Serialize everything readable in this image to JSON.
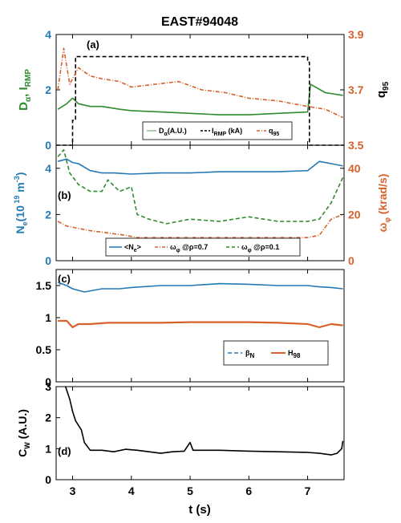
{
  "title": "EAST#94048",
  "xlabel": "t (s)",
  "x_ticks": [
    "3",
    "4",
    "5",
    "6",
    "7"
  ],
  "xlim": [
    2.72,
    7.62
  ],
  "colors": {
    "blue": "#2479b4",
    "orange": "#d7612a",
    "green": "#2e8b2e",
    "black": "#000000",
    "legend_green": "#8fbc8f"
  },
  "chart_data": [
    {
      "type": "line",
      "panel_label": "(a)",
      "ylabel_left": "D_α, I_RMP",
      "ylabel_right": "q_95",
      "ylim_left": [
        0,
        4
      ],
      "ylim_right": [
        3.5,
        3.9
      ],
      "yticks_left": [
        "0",
        "2",
        "4"
      ],
      "yticks_right": [
        "3.5",
        "3.7",
        "3.9"
      ],
      "legend": {
        "position": "bottom-right",
        "entries": [
          "D_α(A.U.)",
          "I_RMP (kA)",
          "q_95"
        ]
      },
      "series": [
        {
          "name": "D_α(A.U.)",
          "axis": "left",
          "color": "green",
          "style": "solid",
          "x": [
            2.75,
            2.9,
            3.0,
            3.1,
            3.3,
            3.5,
            3.8,
            4.0,
            4.5,
            5.0,
            5.5,
            6.0,
            6.5,
            7.0,
            7.05,
            7.3,
            7.6
          ],
          "y": [
            1.3,
            1.5,
            1.7,
            1.5,
            1.4,
            1.4,
            1.3,
            1.25,
            1.2,
            1.15,
            1.1,
            1.1,
            1.15,
            1.2,
            2.2,
            1.9,
            1.8
          ]
        },
        {
          "name": "I_RMP (kA)",
          "axis": "left",
          "color": "black",
          "style": "dashed",
          "x": [
            2.72,
            3.0,
            3.0,
            3.05,
            3.05,
            7.0,
            7.0,
            7.03,
            7.03,
            7.62
          ],
          "y": [
            0.0,
            0.0,
            0.9,
            0.9,
            3.2,
            3.2,
            3.0,
            3.0,
            0.0,
            0.0
          ]
        },
        {
          "name": "q_95",
          "axis": "right",
          "color": "orange",
          "style": "dash-dot",
          "x": [
            2.75,
            2.85,
            2.95,
            3.1,
            3.3,
            3.5,
            3.8,
            4.0,
            4.4,
            4.8,
            5.2,
            5.6,
            6.0,
            6.5,
            7.0,
            7.3,
            7.6
          ],
          "y": [
            3.7,
            3.85,
            3.72,
            3.78,
            3.75,
            3.74,
            3.73,
            3.71,
            3.72,
            3.73,
            3.7,
            3.69,
            3.67,
            3.66,
            3.64,
            3.63,
            3.6
          ]
        }
      ]
    },
    {
      "type": "line",
      "panel_label": "(b)",
      "ylabel_left": "N_e (10^19 m^-3)",
      "ylabel_right": "ω_φ (krad/s)",
      "ylim_left": [
        0,
        5
      ],
      "ylim_right": [
        0,
        50
      ],
      "yticks_left": [
        "0",
        "2",
        "4"
      ],
      "yticks_right": [
        "0",
        "20",
        "40"
      ],
      "legend": {
        "position": "bottom",
        "entries": [
          "<N_e>",
          "ω_φ @ρ=0.7",
          "ω_φ @ρ=0.1"
        ]
      },
      "series": [
        {
          "name": "<N_e>",
          "axis": "left",
          "color": "blue",
          "style": "solid",
          "x": [
            2.75,
            2.9,
            3.0,
            3.1,
            3.3,
            3.5,
            3.7,
            4.0,
            4.5,
            5.0,
            5.5,
            6.0,
            6.5,
            7.0,
            7.2,
            7.4,
            7.6
          ],
          "y": [
            4.3,
            4.4,
            4.25,
            4.2,
            3.9,
            3.8,
            3.8,
            3.75,
            3.8,
            3.8,
            3.85,
            3.85,
            3.85,
            3.9,
            4.3,
            4.2,
            4.1
          ]
        },
        {
          "name": "ω_φ @ρ=0.7",
          "axis": "right",
          "color": "orange",
          "style": "dash-dot",
          "x": [
            2.75,
            2.9,
            3.1,
            3.3,
            3.6,
            3.9,
            4.1,
            4.5,
            5.0,
            5.5,
            6.0,
            6.5,
            7.0,
            7.2,
            7.4,
            7.6
          ],
          "y": [
            17,
            15,
            14,
            13,
            12,
            11,
            10,
            10,
            10,
            10,
            10,
            10,
            10,
            11,
            18,
            20
          ]
        },
        {
          "name": "ω_φ @ρ=0.1",
          "axis": "right",
          "color": "green",
          "style": "dashed",
          "x": [
            2.75,
            2.85,
            2.95,
            3.1,
            3.3,
            3.5,
            3.6,
            3.8,
            4.0,
            4.1,
            4.3,
            4.6,
            5.0,
            5.5,
            6.0,
            6.5,
            7.0,
            7.2,
            7.4,
            7.6
          ],
          "y": [
            45,
            48,
            38,
            33,
            30,
            30,
            35,
            30,
            32,
            20,
            18,
            16,
            18,
            17,
            19,
            17,
            17,
            18,
            25,
            36
          ]
        }
      ]
    },
    {
      "type": "line",
      "panel_label": "(c)",
      "ylim": [
        0,
        1.75
      ],
      "yticks": [
        "0",
        "0.5",
        "1",
        "1.5"
      ],
      "legend": {
        "position": "bottom-right",
        "entries": [
          "β_N",
          "H_98"
        ]
      },
      "series": [
        {
          "name": "β_N",
          "color": "blue",
          "style": "solid",
          "x": [
            2.75,
            2.9,
            3.0,
            3.2,
            3.5,
            3.8,
            4.0,
            4.5,
            5.0,
            5.5,
            6.0,
            6.5,
            7.0,
            7.2,
            7.4,
            7.6
          ],
          "y": [
            1.55,
            1.5,
            1.45,
            1.4,
            1.45,
            1.45,
            1.47,
            1.5,
            1.5,
            1.53,
            1.52,
            1.5,
            1.5,
            1.48,
            1.47,
            1.45
          ]
        },
        {
          "name": "H_98",
          "color": "orange",
          "style": "solid",
          "x": [
            2.75,
            2.9,
            3.0,
            3.1,
            3.3,
            3.6,
            4.0,
            4.5,
            5.0,
            5.5,
            6.0,
            6.5,
            7.0,
            7.2,
            7.4,
            7.6
          ],
          "y": [
            0.95,
            0.95,
            0.85,
            0.9,
            0.9,
            0.92,
            0.92,
            0.92,
            0.93,
            0.93,
            0.93,
            0.92,
            0.9,
            0.85,
            0.9,
            0.88
          ]
        }
      ]
    },
    {
      "type": "line",
      "panel_label": "(d)",
      "ylabel": "C_w (A.U.)",
      "ylim": [
        0,
        3
      ],
      "yticks": [
        "0",
        "1",
        "2",
        "3"
      ],
      "series": [
        {
          "name": "C_w",
          "color": "black",
          "style": "solid",
          "x": [
            2.88,
            2.95,
            3.0,
            3.05,
            3.15,
            3.2,
            3.3,
            3.5,
            3.7,
            3.9,
            4.1,
            4.3,
            4.5,
            4.7,
            4.9,
            5.0,
            5.05,
            5.2,
            5.5,
            6.0,
            6.5,
            7.0,
            7.2,
            7.4,
            7.5,
            7.58,
            7.6
          ],
          "y": [
            3.0,
            2.6,
            2.2,
            1.9,
            1.6,
            1.2,
            0.95,
            0.95,
            0.9,
            0.98,
            0.95,
            0.9,
            0.85,
            0.9,
            0.92,
            1.2,
            0.95,
            0.95,
            0.95,
            0.92,
            0.9,
            0.88,
            0.85,
            0.8,
            0.85,
            1.0,
            1.25
          ]
        }
      ]
    }
  ]
}
